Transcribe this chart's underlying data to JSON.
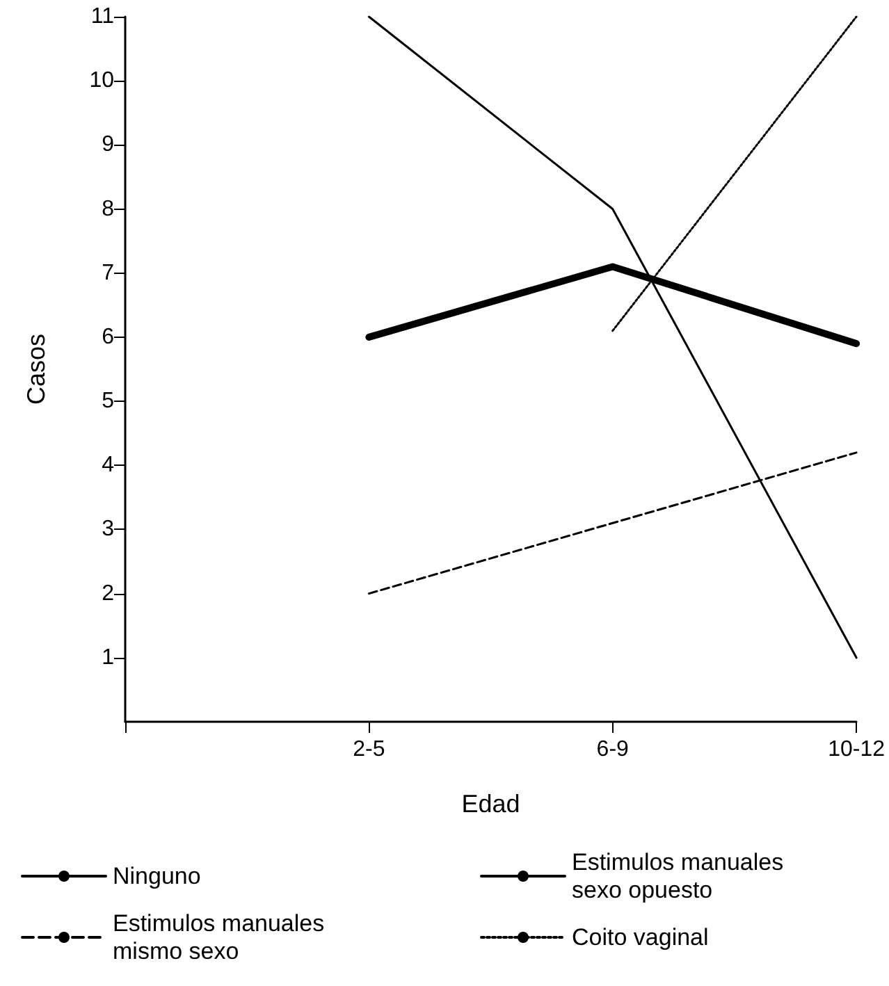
{
  "chart_data": {
    "type": "line",
    "xlabel": "Edad",
    "ylabel": "Casos",
    "categories": [
      null,
      "2-5",
      "6-9",
      "10-12"
    ],
    "series": [
      {
        "name": "Ninguno",
        "color": "#000000",
        "line_style": "solid",
        "values": [
          null,
          11,
          8,
          1
        ]
      },
      {
        "name": "Estimulos manuales sexo opuesto",
        "color": "#000000",
        "line_style": "solid",
        "values": [
          null,
          6,
          7.1,
          5.9
        ]
      },
      {
        "name": "Estimulos manuales mismo sexo",
        "color": "#000000",
        "line_style": "dashed",
        "values": [
          null,
          2,
          3.1,
          4.2
        ]
      },
      {
        "name": "Coito vaginal",
        "color": "#000000",
        "line_style": "dotted",
        "values": [
          null,
          null,
          6.1,
          11
        ]
      }
    ],
    "ylim": [
      0,
      11
    ],
    "yticks": [
      1,
      2,
      3,
      4,
      5,
      6,
      7,
      8,
      9,
      10,
      11
    ],
    "grid": false,
    "marker": "none",
    "legend": "bottom"
  }
}
